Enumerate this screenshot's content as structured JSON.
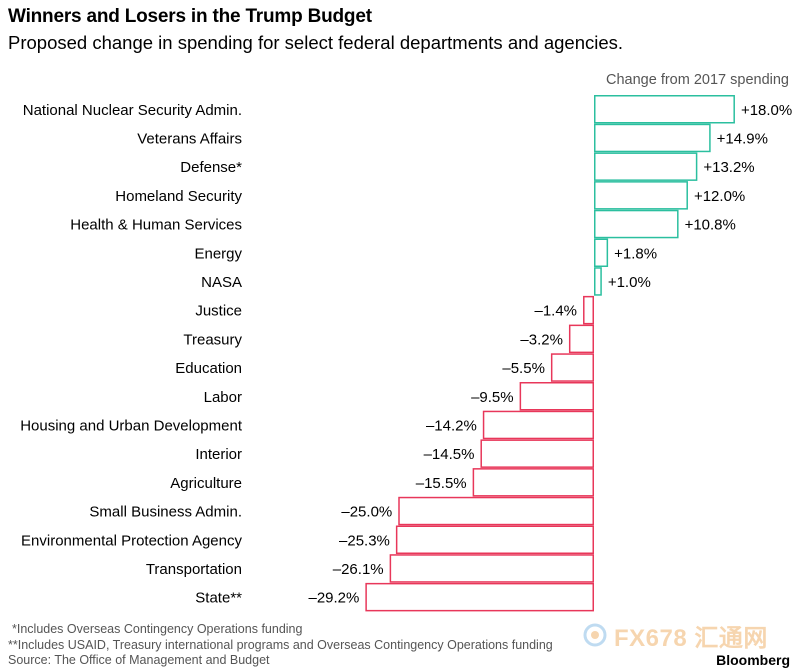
{
  "title": "Winners and Losers in the Trump Budget",
  "subtitle": "Proposed change in spending for select federal departments and agencies.",
  "footnotes": [
    "*Includes Overseas Contingency Operations funding",
    "**Includes USAID, Treasury international programs and Overseas Contingency Operations funding",
    "Source: The Office of Management and Budget"
  ],
  "brand": "Bloomberg",
  "watermark": "FX678 汇通网",
  "colors": {
    "positive": "#2bbf9f",
    "negative": "#e8375a",
    "text": "#000000",
    "muted": "#555555"
  },
  "chart_data": {
    "type": "bar",
    "orientation": "horizontal",
    "title": "Winners and Losers in the Trump Budget",
    "subtitle": "Proposed change in spending for select federal departments and agencies.",
    "value_axis_label": "Change from 2017 spending",
    "unit": "%",
    "grid": false,
    "xlim": [
      -29.2,
      18.0
    ],
    "categories": [
      "National Nuclear Security Admin.",
      "Veterans Affairs",
      "Defense*",
      "Homeland Security",
      "Health & Human Services",
      "Energy",
      "NASA",
      "Justice",
      "Treasury",
      "Education",
      "Labor",
      "Housing and Urban Development",
      "Interior",
      "Agriculture",
      "Small Business Admin.",
      "Environmental Protection Agency",
      "Transportation",
      "State**"
    ],
    "values": [
      18.0,
      14.9,
      13.2,
      12.0,
      10.8,
      1.8,
      1.0,
      -1.4,
      -3.2,
      -5.5,
      -9.5,
      -14.2,
      -14.5,
      -15.5,
      -25.0,
      -25.3,
      -26.1,
      -29.2
    ],
    "value_labels": [
      "+18.0%",
      "+14.9%",
      "+13.2%",
      "+12.0%",
      "+10.8%",
      "+1.8%",
      "+1.0%",
      "–1.4%",
      "–3.2%",
      "–5.5%",
      "–9.5%",
      "–14.2%",
      "–14.5%",
      "–15.5%",
      "–25.0%",
      "–25.3%",
      "–26.1%",
      "–29.2%"
    ]
  }
}
